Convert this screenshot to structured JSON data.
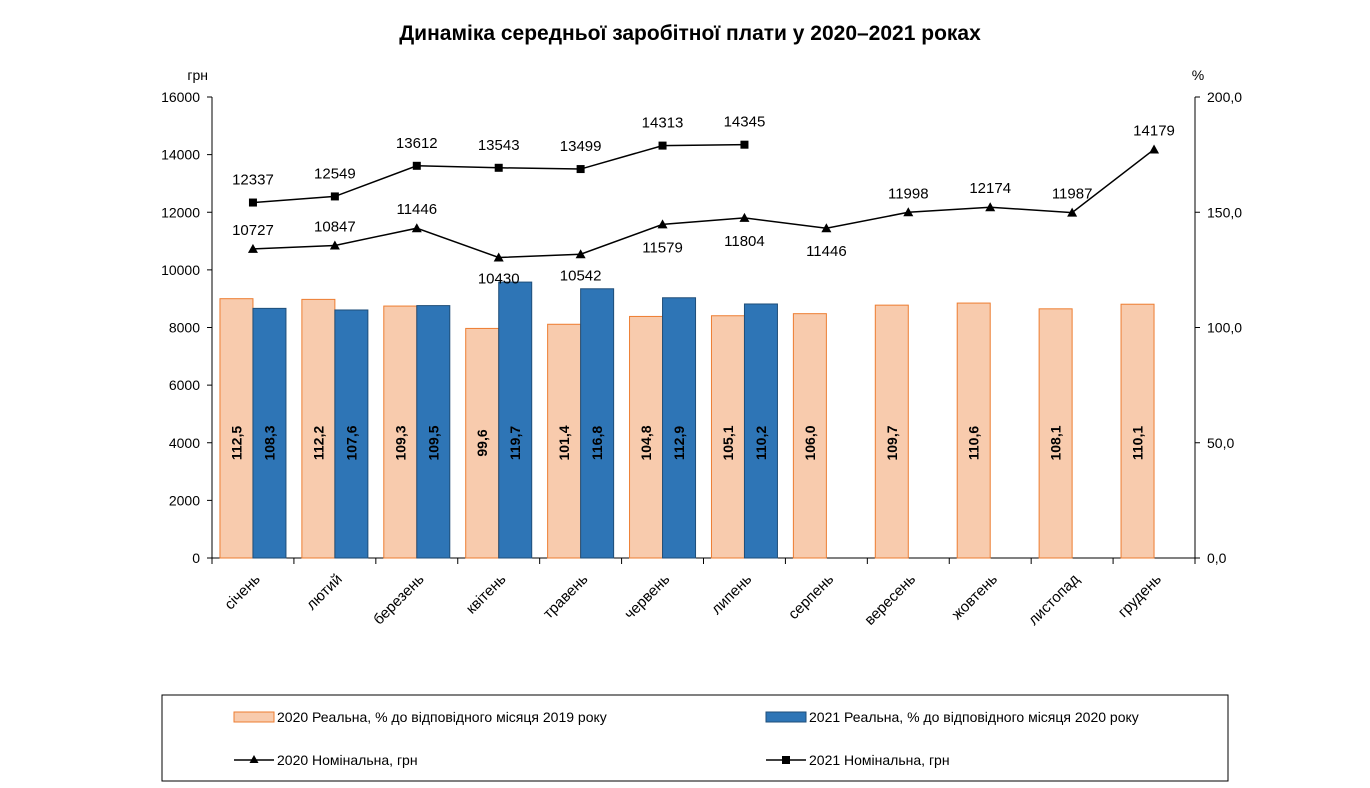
{
  "chart_data": {
    "type": "bar",
    "title": "Динаміка середньої заробітної плати у 2020–2021 роках",
    "y_left_unit": "грн",
    "y_right_unit": "%",
    "y_left_lim": [
      0,
      16000
    ],
    "y_right_lim": [
      0,
      200
    ],
    "y_left_ticks": [
      "0",
      "2000",
      "4000",
      "6000",
      "8000",
      "10000",
      "12000",
      "14000",
      "16000"
    ],
    "y_right_ticks": [
      "0,0",
      "50,0",
      "100,0",
      "150,0",
      "200,0"
    ],
    "categories": [
      "січень",
      "лютий",
      "березень",
      "квітень",
      "травень",
      "червень",
      "липень",
      "серпень",
      "вересень",
      "жовтень",
      "листопад",
      "грудень"
    ],
    "series": [
      {
        "name": "2020 Реальна, % до відповідного місяця 2019 року",
        "kind": "bar",
        "axis": "right",
        "color": "#F8CBAD",
        "border": "#ED7D31",
        "values": [
          112.5,
          112.2,
          109.3,
          99.6,
          101.4,
          104.8,
          105.1,
          106.0,
          109.7,
          110.6,
          108.1,
          110.1
        ],
        "labels": [
          "112,5",
          "112,2",
          "109,3",
          "99,6",
          "101,4",
          "104,8",
          "105,1",
          "106,0",
          "109,7",
          "110,6",
          "108,1",
          "110,1"
        ]
      },
      {
        "name": "2021 Реальна, % до відповідного місяця 2020 року",
        "kind": "bar",
        "axis": "right",
        "color": "#2E75B6",
        "border": "#1F4E79",
        "values": [
          108.3,
          107.6,
          109.5,
          119.7,
          116.8,
          112.9,
          110.2,
          null,
          null,
          null,
          null,
          null
        ],
        "labels": [
          "108,3",
          "107,6",
          "109,5",
          "119,7",
          "116,8",
          "112,9",
          "110,2",
          null,
          null,
          null,
          null,
          null
        ]
      },
      {
        "name": "2020 Номінальна, грн",
        "kind": "line",
        "axis": "left",
        "marker": "triangle",
        "values": [
          10727,
          10847,
          11446,
          10430,
          10542,
          11579,
          11804,
          11446,
          11998,
          12174,
          11987,
          14179
        ]
      },
      {
        "name": "2021 Номінальна, грн",
        "kind": "line",
        "axis": "left",
        "marker": "square",
        "values": [
          12337,
          12549,
          13612,
          13543,
          13499,
          14313,
          14345,
          null,
          null,
          null,
          null,
          null
        ]
      }
    ],
    "legend_position": "bottom",
    "grid": false
  }
}
